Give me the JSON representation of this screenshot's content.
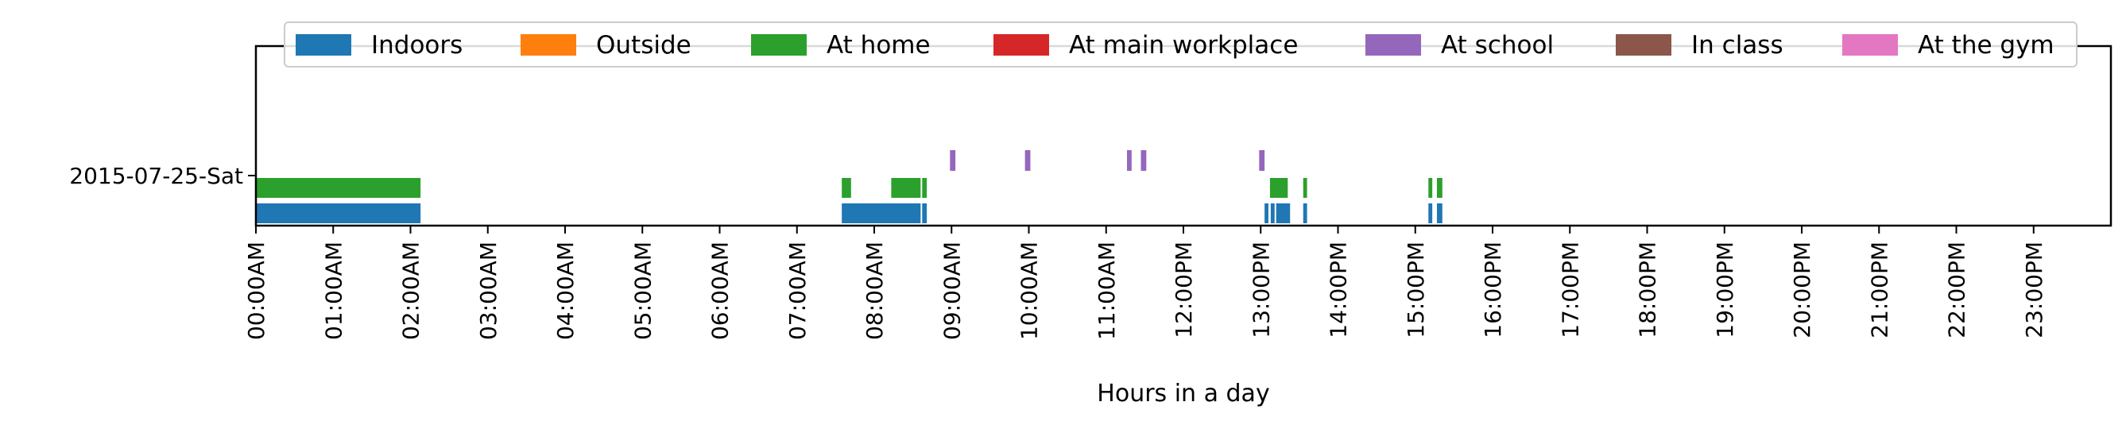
{
  "chart_data": {
    "type": "timeline",
    "xlabel": "Hours in a day",
    "ylabel": "",
    "title": "",
    "xlim": [
      0,
      24
    ],
    "x_unit": "hours",
    "x_tick_labels": [
      "00:00AM",
      "01:00AM",
      "02:00AM",
      "03:00AM",
      "04:00AM",
      "05:00AM",
      "06:00AM",
      "07:00AM",
      "08:00AM",
      "09:00AM",
      "10:00AM",
      "11:00AM",
      "12:00PM",
      "13:00PM",
      "14:00PM",
      "15:00PM",
      "16:00PM",
      "17:00PM",
      "18:00PM",
      "19:00PM",
      "20:00PM",
      "21:00PM",
      "22:00PM",
      "23:00PM"
    ],
    "y_tick_labels": [
      "2015-07-25-Sat"
    ],
    "grid": false,
    "legend_placement": "top-center",
    "series": [
      {
        "name": "Indoors",
        "color": "#1f77b4",
        "lane": 0,
        "intervals": [
          [
            0.0,
            2.13
          ],
          [
            7.58,
            8.6
          ],
          [
            8.62,
            8.68
          ],
          [
            13.05,
            13.1
          ],
          [
            13.13,
            13.18
          ],
          [
            13.2,
            13.38
          ],
          [
            13.55,
            13.6
          ],
          [
            15.17,
            15.22
          ],
          [
            15.28,
            15.35
          ]
        ]
      },
      {
        "name": "Outside",
        "color": "#ff7f0e",
        "lane": 1,
        "intervals": []
      },
      {
        "name": "At home",
        "color": "#2ca02c",
        "lane": 1,
        "intervals": [
          [
            0.0,
            2.13
          ],
          [
            7.58,
            7.7
          ],
          [
            8.22,
            8.6
          ],
          [
            8.62,
            8.68
          ],
          [
            13.12,
            13.35
          ],
          [
            13.55,
            13.6
          ],
          [
            15.17,
            15.22
          ],
          [
            15.28,
            15.35
          ]
        ]
      },
      {
        "name": "At main workplace",
        "color": "#d62728",
        "lane": 1,
        "intervals": []
      },
      {
        "name": "At school",
        "color": "#9467bd",
        "lane": 2,
        "intervals": [
          [
            8.98,
            9.05
          ],
          [
            9.95,
            10.02
          ],
          [
            11.27,
            11.33
          ],
          [
            11.45,
            11.52
          ],
          [
            12.98,
            13.05
          ]
        ]
      },
      {
        "name": "In class",
        "color": "#8c564b",
        "lane": 2,
        "intervals": []
      },
      {
        "name": "At the gym",
        "color": "#e377c2",
        "lane": 2,
        "intervals": []
      }
    ]
  }
}
